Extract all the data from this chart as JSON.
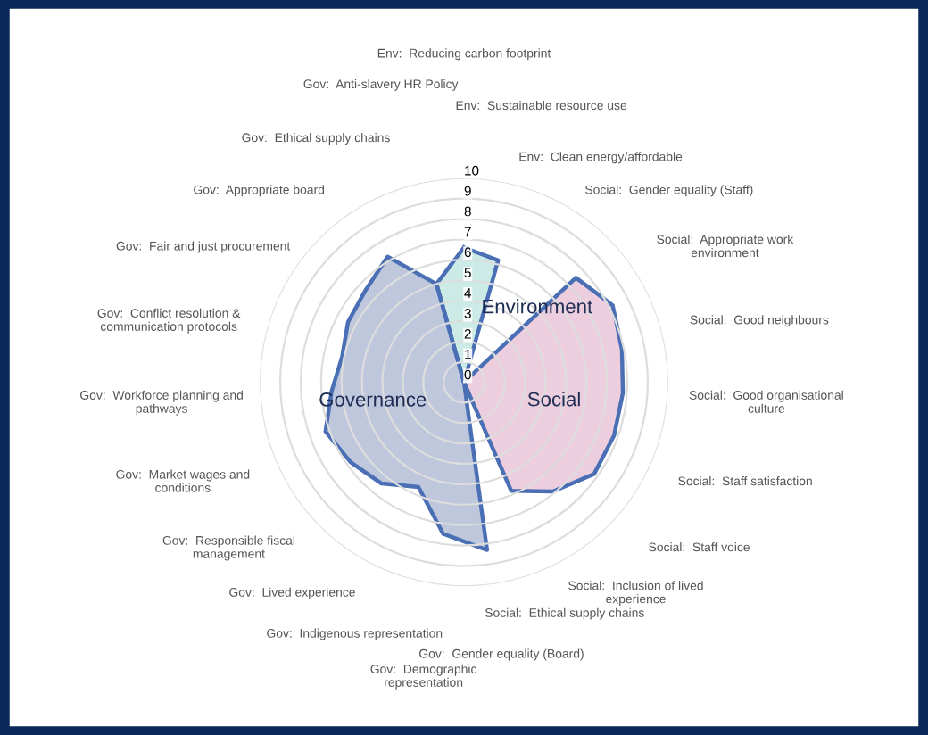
{
  "chart_data": {
    "type": "radar",
    "categories": [
      "Env:  Reducing carbon footprint",
      "Env:  Sustainable resource use",
      "Env:  Clean energy/affordable",
      "Social:  Gender equality (Staff)",
      "Social:  Appropriate work\nenvironment",
      "Social:  Good neighbours",
      "Social:  Good organisational\nculture",
      "Social:  Staff satisfaction",
      "Social:  Staff voice",
      "Social:  Inclusion of lived\nexperience",
      "Social:  Ethical supply chains",
      "Gov:  Gender equality (Board)",
      "Gov:  Demographic\nrepresentation",
      "Gov:  Indigenous representation",
      "Gov:  Lived experience",
      "Gov:  Responsible fiscal\nmanagement",
      "Gov:  Market wages and\nconditions",
      "Gov:  Workforce planning and\npathways",
      "Gov:  Conflict resolution &\ncommunication protocols",
      "Gov:  Fair and just procurement",
      "Gov:  Appropriate board",
      "Gov:  Ethical supply chains",
      "Gov:  Anti-slavery HR Policy"
    ],
    "series": [
      {
        "name": "Governance",
        "color": "#b3bdd6",
        "values": [
          0,
          0,
          0,
          0,
          0,
          0,
          0,
          0,
          0,
          0,
          0,
          8.3,
          7.5,
          5.6,
          6.4,
          6.8,
          7.2,
          6.5,
          6.1,
          6.4,
          6.6,
          7.2,
          5
        ]
      },
      {
        "name": "Social",
        "color": "#eac6d8",
        "values": [
          0,
          0,
          0,
          7.5,
          8.2,
          7.9,
          7.8,
          7.8,
          7.8,
          6.9,
          5.8,
          0,
          0,
          0,
          0,
          0,
          0,
          0,
          0,
          0,
          0,
          0,
          0
        ]
      },
      {
        "name": "Environment",
        "color": "#c3e8e2",
        "values": [
          6.6,
          6.2,
          0,
          0,
          0,
          0,
          0,
          0,
          0,
          0,
          0,
          0,
          0,
          0,
          0,
          0,
          0,
          0,
          0,
          0,
          0,
          0,
          5
        ]
      }
    ],
    "ylim": [
      0,
      10
    ],
    "yticks": [
      0,
      1,
      2,
      3,
      4,
      5,
      6,
      7,
      8,
      9,
      10
    ],
    "grid": "y",
    "legend": false
  }
}
